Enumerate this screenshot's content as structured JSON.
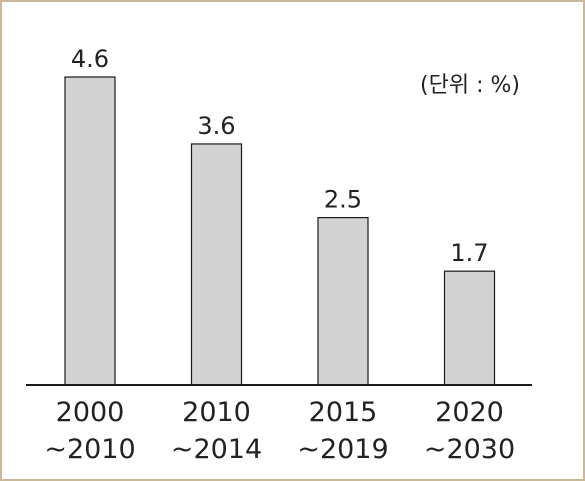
{
  "chart_data": {
    "type": "bar",
    "categories": [
      [
        "2000",
        "~2010"
      ],
      [
        "2010",
        "~2014"
      ],
      [
        "2015",
        "~2019"
      ],
      [
        "2020",
        "~2030"
      ]
    ],
    "values": [
      4.6,
      3.6,
      2.5,
      1.7
    ],
    "value_labels": [
      "4.6",
      "3.6",
      "2.5",
      "1.7"
    ],
    "unit_note": "(단위 : %)",
    "ylim": [
      0,
      4.6
    ],
    "grid": false,
    "legend": "none",
    "colors": {
      "bar_fill": "#d3d3d3",
      "bar_stroke": "#1a1a1a",
      "axis": "#1a1a1a",
      "frame": "#c9b99a"
    }
  }
}
